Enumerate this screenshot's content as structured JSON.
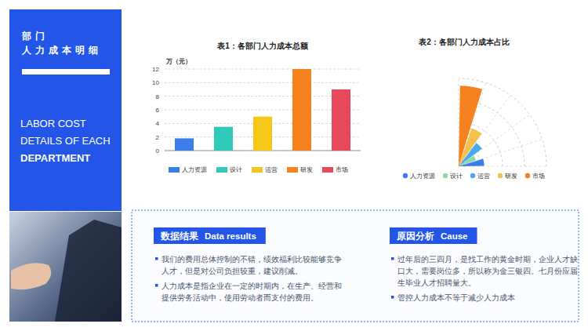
{
  "sidebar": {
    "title_lines": [
      "部门",
      "人力成本明细"
    ],
    "subtitle_lines": [
      "LABOR COST",
      "DETAILS OF EACH",
      "DEPARTMENT"
    ]
  },
  "chart_data": [
    {
      "type": "bar",
      "title": "表1：各部门人力成本总额",
      "y_label": "万（元）",
      "categories": [
        "人力资源",
        "设计",
        "运营",
        "研发",
        "市场"
      ],
      "values": [
        1.8,
        3.5,
        5,
        12,
        9
      ],
      "colors": [
        "#3b7de9",
        "#2fcab9",
        "#f6c619",
        "#f5821f",
        "#e7485b"
      ],
      "ylim": [
        0,
        12
      ],
      "yticks": [
        0,
        2,
        4,
        6,
        8,
        10,
        12
      ],
      "grid": true,
      "legend": "bottom"
    },
    {
      "type": "rose",
      "title": "表2：各部门人力成本占比",
      "categories": [
        "人力资源",
        "设计",
        "运营",
        "研发",
        "市场"
      ],
      "values": [
        7,
        5,
        8,
        11,
        22
      ],
      "colors": [
        "#3b7de9",
        "#8fd9a8",
        "#4aa8f0",
        "#f6c04a",
        "#f5821f"
      ],
      "ylim": [
        0,
        24
      ],
      "yticks": [
        6,
        12,
        18,
        24
      ],
      "grid": true,
      "tick_labels": false,
      "legend": "bottom"
    }
  ],
  "panels": [
    {
      "heading": "数据结果",
      "heading_en": "Data results",
      "bullets": [
        "我们的费用总体控制的不错，绩效福利比较能够竞争人才，但是对公司负担较重，建议削减。",
        "人力成本是指企业在一定的时期内，在生产、经营和提供劳务活动中，使用劳动者而支付的费用。"
      ]
    },
    {
      "heading": "原因分析",
      "heading_en": "Cause",
      "bullets": [
        "过年后的三四月，是找工作的黄金时期，企业人才缺口大，需要岗位多，所以称为金三银四。七月份应届生毕业人才招聘量大。",
        "管控人力成本不等于减少人力成本"
      ]
    }
  ]
}
